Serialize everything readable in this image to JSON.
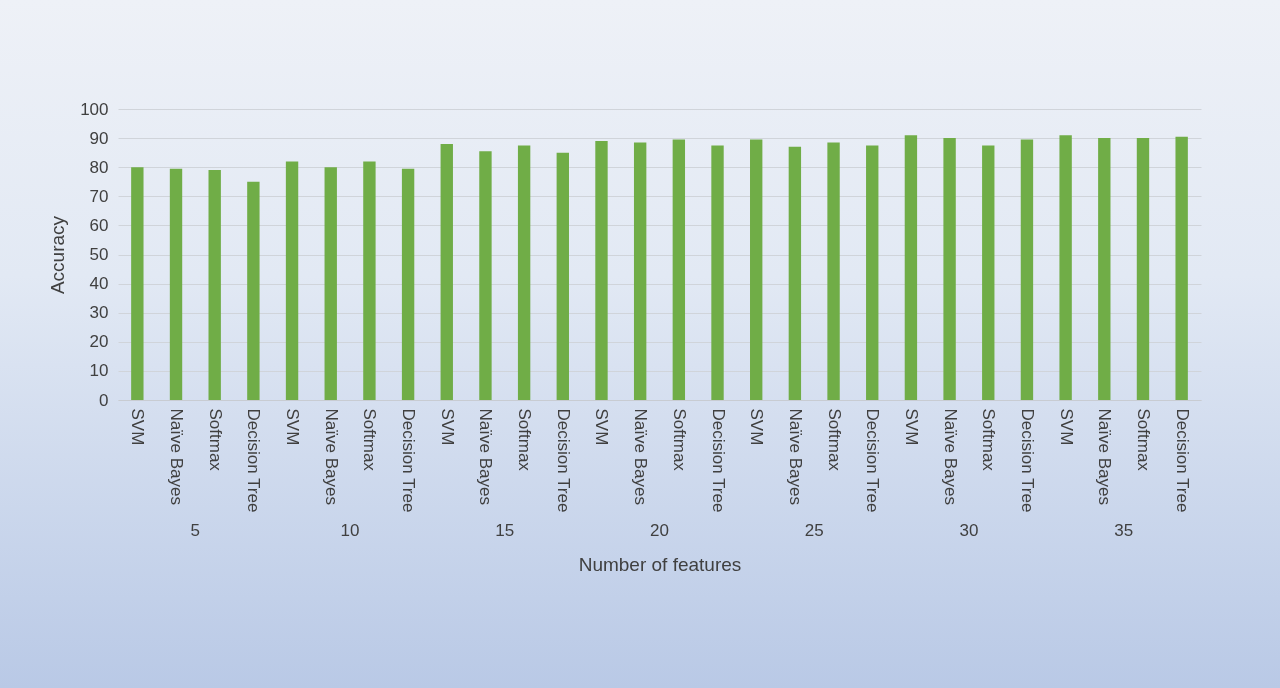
{
  "chart_data": {
    "type": "bar",
    "xlabel": "Number of features",
    "ylabel": "Accuracy",
    "categories": [
      "SVM",
      "Naïve Bayes",
      "Softmax",
      "Decision Tree",
      "SVM",
      "Naïve Bayes",
      "Softmax",
      "Decision Tree",
      "SVM",
      "Naïve Bayes",
      "Softmax",
      "Decision Tree",
      "SVM",
      "Naïve Bayes",
      "Softmax",
      "Decision Tree",
      "SVM",
      "Naïve Bayes",
      "Softmax",
      "Decision Tree",
      "SVM",
      "Naïve Bayes",
      "Softmax",
      "Decision Tree",
      "SVM",
      "Naïve Bayes",
      "Softmax",
      "Decision Tree"
    ],
    "values": [
      80,
      79.5,
      79,
      75,
      82,
      80,
      82,
      79.5,
      88,
      85.5,
      87.5,
      85,
      89,
      88.5,
      89.5,
      87.5,
      89.5,
      87,
      88.5,
      87.5,
      91,
      90,
      87.5,
      89.5,
      91,
      90,
      90,
      90.5
    ],
    "color": "#70ad47",
    "ylim": [
      0,
      100
    ],
    "yticks": [
      0,
      10,
      20,
      30,
      40,
      50,
      60,
      70,
      80,
      90,
      100
    ],
    "grid": "y",
    "annotations": [
      "5",
      "10",
      "15",
      "20",
      "25",
      "30",
      "35"
    ]
  }
}
